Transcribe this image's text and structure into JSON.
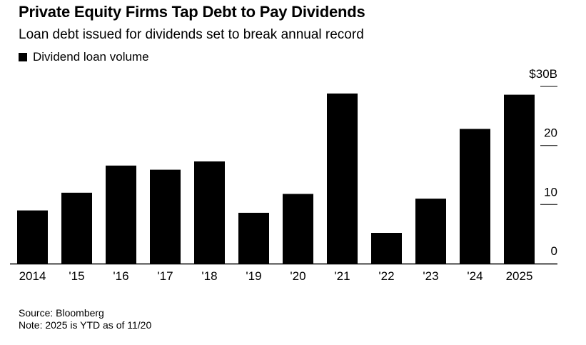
{
  "header": {
    "title": "Private Equity Firms Tap Debt to Pay Dividends",
    "subtitle": "Loan debt issued for dividends set to break annual record"
  },
  "legend": {
    "label": "Dividend loan volume",
    "color": "#000000"
  },
  "footer": {
    "source": "Source: Bloomberg",
    "note": "Note: 2025 is YTD as of 11/20"
  },
  "chart_data": {
    "type": "bar",
    "title": "Private Equity Firms Tap Debt to Pay Dividends",
    "subtitle": "Loan debt issued for dividends set to break annual record",
    "series": [
      {
        "name": "Dividend loan volume",
        "color": "#000000",
        "values": [
          9.0,
          12.0,
          16.6,
          15.9,
          17.3,
          8.6,
          11.8,
          28.8,
          5.2,
          11.0,
          22.8,
          28.6
        ]
      }
    ],
    "categories": [
      "2014",
      "'15",
      "'16",
      "'17",
      "'18",
      "'19",
      "'20",
      "'21",
      "'22",
      "'23",
      "'24",
      "2025"
    ],
    "ylim": [
      0,
      30
    ],
    "yticks": [
      0,
      10,
      20,
      30
    ],
    "ytick_labels": [
      "0",
      "10",
      "20",
      "$30B"
    ],
    "ylabel": "",
    "xlabel": "",
    "y_axis_position": "right",
    "grid": false
  }
}
